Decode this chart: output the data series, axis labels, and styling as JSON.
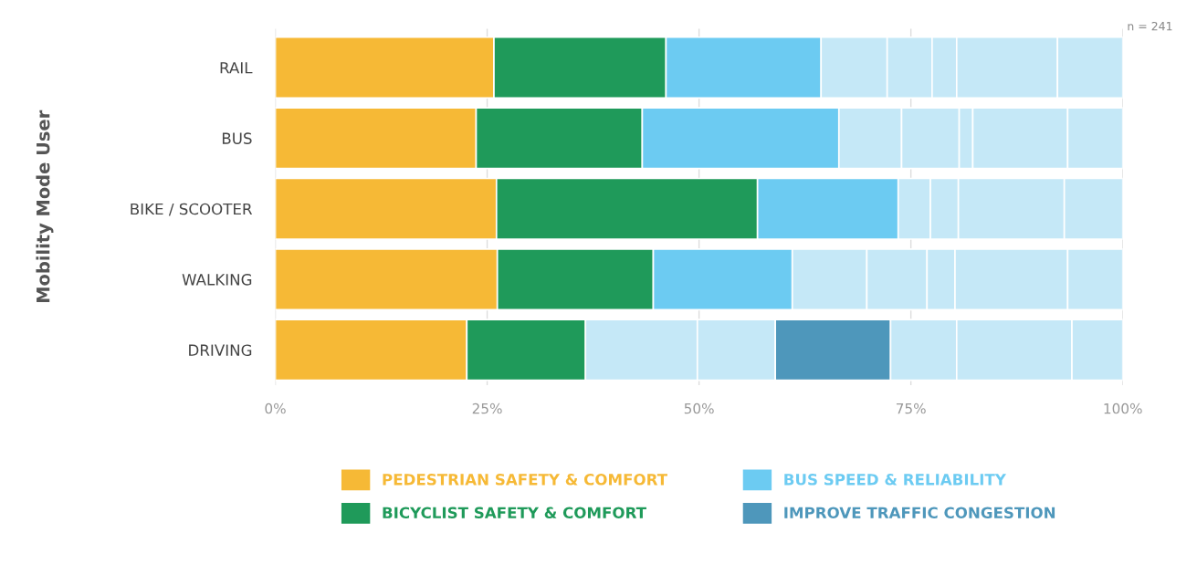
{
  "chart_data": {
    "type": "bar",
    "orientation": "horizontal",
    "stacked": true,
    "ylabel": "Mobility Mode User",
    "categories": [
      "RAIL",
      "BUS",
      "BIKE / SCOOTER",
      "WALKING",
      "DRIVING"
    ],
    "series": [
      {
        "name": "PEDESTRIAN SAFETY & COMFORT",
        "color": "#f6b936",
        "values": [
          25.8,
          23.7,
          26.1,
          26.2,
          22.6
        ]
      },
      {
        "name": "BICYCLIST SAFETY & COMFORT",
        "color": "#1f9a5a",
        "values": [
          20.3,
          19.6,
          30.8,
          18.4,
          14.0
        ]
      },
      {
        "name": "BUS SPEED & RELIABILITY",
        "color": "#6ccbf2",
        "colors": [
          "#6ccbf2",
          "#6ccbf2",
          "#6ccbf2",
          "#6ccbf2",
          "#c5e8f7"
        ],
        "values": [
          18.3,
          23.2,
          16.6,
          16.4,
          13.2
        ]
      },
      {
        "color": "#c5e8f7",
        "values": [
          7.8,
          7.4,
          3.8,
          8.8,
          9.2
        ]
      },
      {
        "name": "IMPROVE TRAFFIC CONGESTION",
        "color": "#4e97bb",
        "values": [
          null,
          null,
          null,
          null,
          13.6
        ]
      },
      {
        "color": "#c5e8f7",
        "values": [
          5.3,
          6.8,
          3.3,
          7.1,
          7.8
        ]
      },
      {
        "color": "#c5e8f7",
        "values": [
          2.9,
          1.6,
          12.5,
          3.3,
          13.6
        ]
      },
      {
        "color": "#c5e8f7",
        "values": [
          11.9,
          11.2,
          6.9,
          13.3,
          6.0
        ]
      },
      {
        "color": "#c5e8f7",
        "values": [
          7.7,
          6.5,
          null,
          6.5,
          null
        ]
      }
    ],
    "xlim": [
      0,
      100
    ],
    "xticks": [
      {
        "value": 0,
        "label": "0%"
      },
      {
        "value": 25,
        "label": "25%"
      },
      {
        "value": 50,
        "label": "50%"
      },
      {
        "value": 75,
        "label": "75%"
      },
      {
        "value": 100,
        "label": "100%"
      }
    ],
    "grid": "x",
    "legend": "bottom",
    "annotations": [
      "n = 241"
    ]
  }
}
